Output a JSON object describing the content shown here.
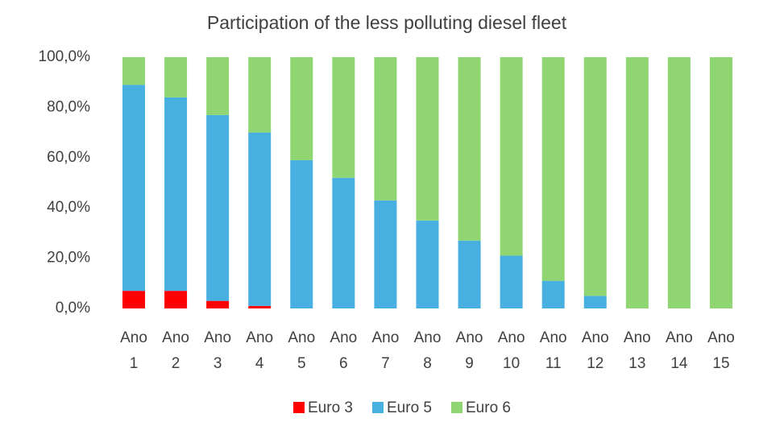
{
  "chart_data": {
    "type": "stacked_bar",
    "title": "Participation of the less polluting diesel fleet",
    "categories": [
      "Ano 1",
      "Ano 2",
      "Ano 3",
      "Ano 4",
      "Ano 5",
      "Ano 6",
      "Ano 7",
      "Ano 8",
      "Ano 9",
      "Ano 10",
      "Ano 11",
      "Ano 12",
      "Ano 13",
      "Ano 14",
      "Ano 15"
    ],
    "series": [
      {
        "name": "Euro 3",
        "color": "#ff0000",
        "values": [
          7,
          7,
          3,
          1,
          0,
          0,
          0,
          0,
          0,
          0,
          0,
          0,
          0,
          0,
          0
        ]
      },
      {
        "name": "Euro 5",
        "color": "#47b0e0",
        "values": [
          82,
          77,
          74,
          69,
          59,
          52,
          43,
          35,
          27,
          21,
          11,
          5,
          0,
          0,
          0
        ]
      },
      {
        "name": "Euro 6",
        "color": "#8fd672",
        "values": [
          11,
          16,
          23,
          30,
          41,
          48,
          57,
          65,
          73,
          79,
          89,
          95,
          100,
          100,
          100
        ]
      }
    ],
    "ylim": [
      0,
      100
    ],
    "yticks": [
      {
        "value": 0,
        "label": "0,0%"
      },
      {
        "value": 20,
        "label": "20,0%"
      },
      {
        "value": 40,
        "label": "40,0%"
      },
      {
        "value": 60,
        "label": "60,0%"
      },
      {
        "value": 80,
        "label": "80,0%"
      },
      {
        "value": 100,
        "label": "100,0%"
      }
    ],
    "grid": false,
    "legend": "bottom"
  }
}
